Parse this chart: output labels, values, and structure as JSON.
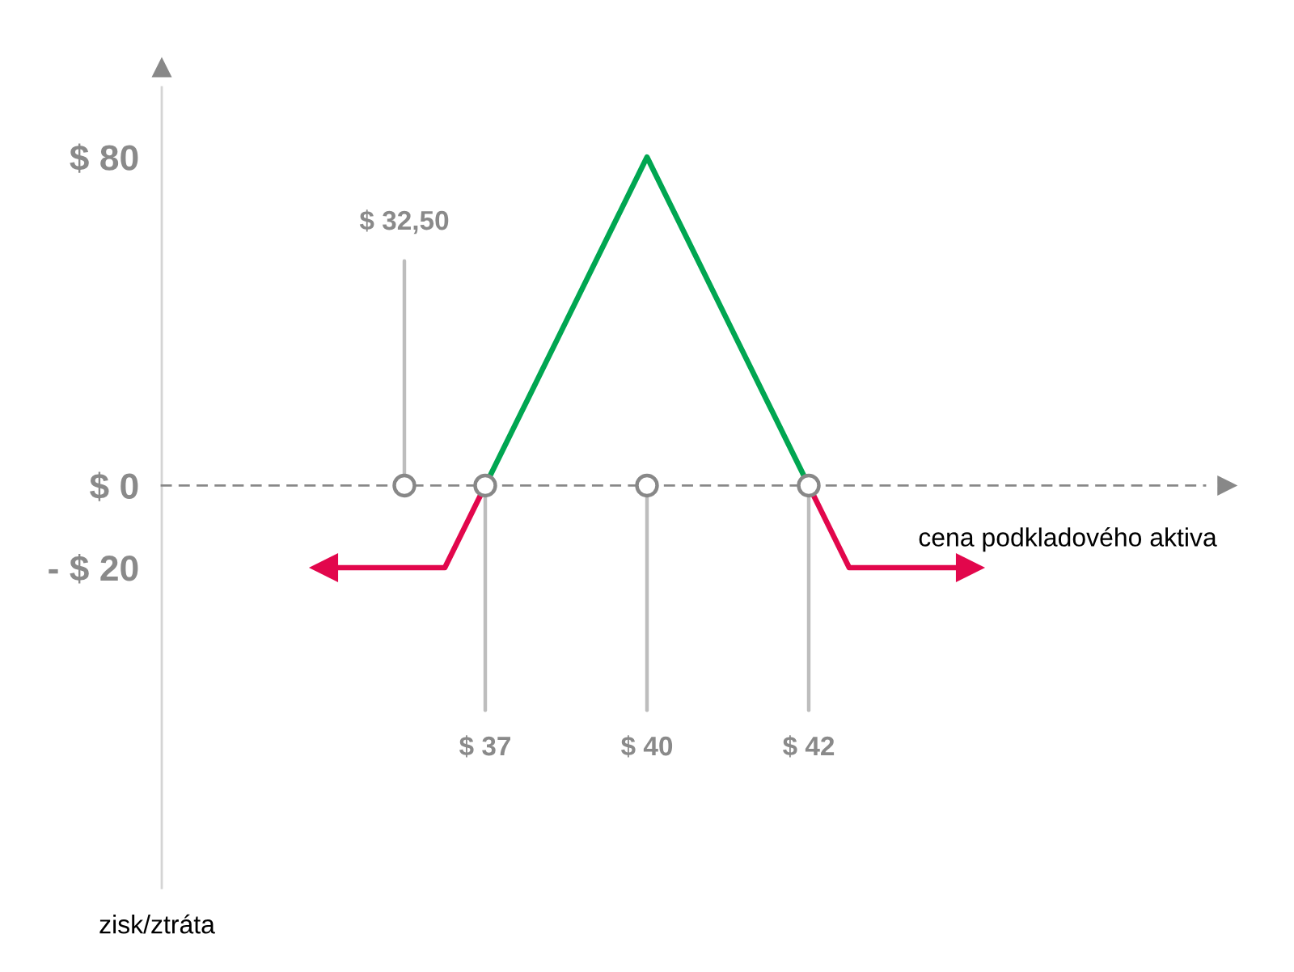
{
  "chart_data": {
    "type": "line",
    "xlabel": "cena podkladového aktiva",
    "ylabel": "zisk/ztráta",
    "categories": [
      null,
      null,
      "$ 32,50",
      null,
      "$ 37",
      null,
      null,
      null,
      "$ 40",
      null,
      null,
      null,
      "$ 42",
      null,
      null,
      null,
      null
    ],
    "series": [
      {
        "color": "#e2074c",
        "values": [
          -20,
          -20,
          -20,
          -20,
          0,
          null,
          null,
          null,
          null,
          null,
          null,
          null,
          0,
          -20,
          -20,
          -20,
          -20
        ]
      },
      {
        "color": "#00a651",
        "values": [
          null,
          null,
          null,
          null,
          0,
          20,
          40,
          60,
          80,
          60,
          40,
          20,
          0,
          null,
          null,
          null,
          null
        ]
      },
      {
        "type": "scatter",
        "marker": "circle",
        "color": "#ffffff",
        "x": [
          "$ 32,50",
          "$ 37",
          "$ 40",
          "$ 42"
        ],
        "values": [
          0,
          0,
          0,
          0
        ]
      }
    ],
    "ylim": [
      -98,
      97
    ],
    "yticks": [
      {
        "value": 80,
        "label": "$ 80"
      },
      {
        "value": 0,
        "label": "$ 0"
      },
      {
        "value": -20,
        "label": "- $ 20"
      }
    ],
    "line_style": "solid"
  }
}
